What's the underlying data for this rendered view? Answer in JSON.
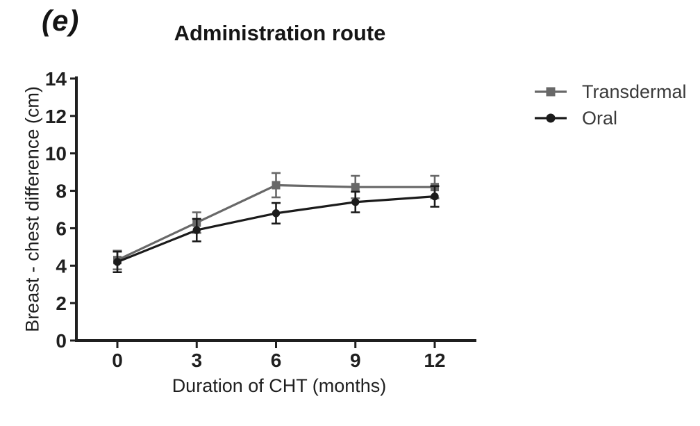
{
  "chart_data": {
    "type": "line",
    "panel_label": "(e)",
    "title": "Administration route",
    "xlabel": "Duration of CHT (months)",
    "ylabel": "Breast - chest difference (cm)",
    "x": [
      0,
      3,
      6,
      9,
      12
    ],
    "xlim": [
      0,
      12
    ],
    "ylim": [
      0,
      14
    ],
    "xticks": [
      0,
      3,
      6,
      9,
      12
    ],
    "yticks": [
      0,
      2,
      4,
      6,
      8,
      10,
      12,
      14
    ],
    "grid": false,
    "legend_position": "right",
    "axis_color": "#1f1f1f",
    "series": [
      {
        "name": "Transdermal",
        "marker": "square",
        "color": "#686868",
        "values": [
          4.3,
          6.3,
          8.3,
          8.2,
          8.2
        ],
        "errors": [
          0.5,
          0.55,
          0.65,
          0.6,
          0.6
        ]
      },
      {
        "name": "Oral",
        "marker": "circle",
        "color": "#1b1b1b",
        "values": [
          4.2,
          5.9,
          6.8,
          7.4,
          7.7
        ],
        "errors": [
          0.55,
          0.6,
          0.55,
          0.55,
          0.55
        ]
      }
    ]
  }
}
